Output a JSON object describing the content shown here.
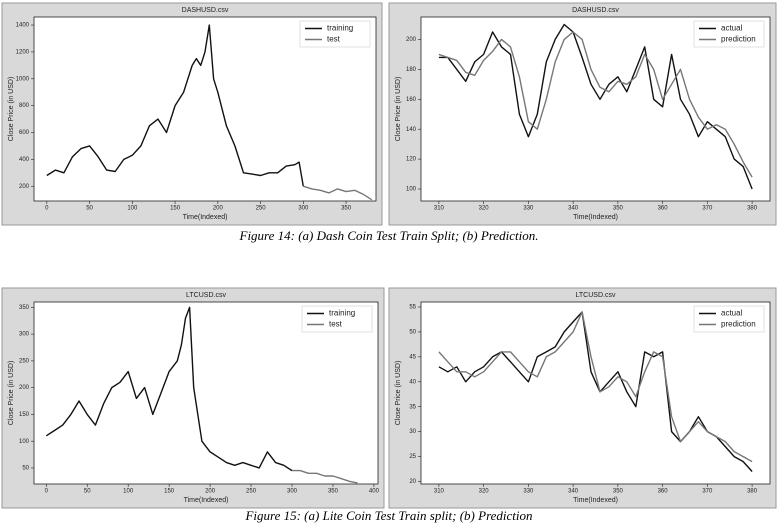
{
  "chart_data": [
    {
      "type": "line",
      "title": "DASHUSD.csv",
      "x_label": "Time(Indexed)",
      "y_label": "Close Price (in USD)",
      "xlim": [
        -15,
        385
      ],
      "ylim": [
        90,
        1460
      ],
      "xticks": [
        0,
        50,
        100,
        150,
        200,
        250,
        300,
        350
      ],
      "yticks": [
        200,
        400,
        600,
        800,
        1000,
        1200,
        1400
      ],
      "legend": "upper right",
      "series": [
        {
          "name": "training",
          "color": "#111111",
          "x": [
            0,
            10,
            20,
            30,
            40,
            50,
            60,
            70,
            80,
            90,
            100,
            110,
            120,
            130,
            140,
            150,
            160,
            170,
            175,
            180,
            185,
            190,
            195,
            200,
            210,
            220,
            230,
            240,
            250,
            260,
            270,
            280,
            290,
            295,
            300
          ],
          "values": [
            280,
            320,
            300,
            420,
            480,
            500,
            420,
            320,
            310,
            400,
            430,
            500,
            650,
            700,
            600,
            800,
            900,
            1100,
            1150,
            1100,
            1200,
            1400,
            1000,
            900,
            650,
            500,
            300,
            290,
            280,
            300,
            300,
            350,
            360,
            380,
            200
          ]
        },
        {
          "name": "test",
          "color": "#777777",
          "x": [
            300,
            310,
            320,
            330,
            340,
            350,
            360,
            370,
            380
          ],
          "values": [
            200,
            180,
            170,
            150,
            180,
            160,
            170,
            140,
            100
          ]
        }
      ]
    },
    {
      "type": "line",
      "title": "DASHUSD.csv",
      "x_label": "Time(Indexed)",
      "y_label": "Close Price (in USD)",
      "xlim": [
        306,
        384
      ],
      "ylim": [
        92,
        215
      ],
      "xticks": [
        310,
        320,
        330,
        340,
        350,
        360,
        370,
        380
      ],
      "yticks": [
        100,
        120,
        140,
        160,
        180,
        200
      ],
      "legend": "upper right",
      "x": [
        310,
        312,
        314,
        316,
        318,
        320,
        322,
        324,
        326,
        328,
        330,
        332,
        334,
        336,
        338,
        340,
        342,
        344,
        346,
        348,
        350,
        352,
        354,
        356,
        358,
        360,
        362,
        364,
        366,
        368,
        370,
        372,
        374,
        376,
        378,
        380
      ],
      "series": [
        {
          "name": "actual",
          "color": "#111111",
          "values": [
            188,
            188,
            180,
            172,
            185,
            190,
            205,
            195,
            190,
            150,
            135,
            150,
            185,
            200,
            210,
            205,
            188,
            170,
            160,
            170,
            175,
            165,
            180,
            195,
            160,
            155,
            190,
            160,
            150,
            135,
            145,
            140,
            135,
            120,
            115,
            100
          ]
        },
        {
          "name": "prediction",
          "color": "#777777",
          "values": [
            190,
            188,
            186,
            178,
            176,
            186,
            192,
            200,
            195,
            175,
            145,
            140,
            160,
            185,
            200,
            205,
            200,
            180,
            168,
            165,
            172,
            170,
            175,
            190,
            180,
            160,
            170,
            180,
            160,
            148,
            140,
            143,
            140,
            130,
            118,
            108
          ]
        }
      ]
    },
    {
      "type": "line",
      "title": "LTCUSD.csv",
      "x_label": "Time(Indexed)",
      "y_label": "Close Price (in USD)",
      "xlim": [
        -15,
        405
      ],
      "ylim": [
        20,
        360
      ],
      "xticks": [
        0,
        50,
        100,
        150,
        200,
        250,
        300,
        350,
        400
      ],
      "yticks": [
        50,
        100,
        150,
        200,
        250,
        300,
        350
      ],
      "legend": "upper right",
      "series": [
        {
          "name": "training",
          "color": "#111111",
          "x": [
            0,
            10,
            20,
            30,
            40,
            50,
            60,
            70,
            80,
            90,
            100,
            110,
            120,
            130,
            140,
            150,
            160,
            165,
            170,
            175,
            180,
            190,
            200,
            210,
            220,
            230,
            240,
            250,
            260,
            270,
            280,
            290,
            300
          ],
          "values": [
            110,
            120,
            130,
            150,
            175,
            150,
            130,
            170,
            200,
            210,
            230,
            180,
            200,
            150,
            190,
            230,
            250,
            280,
            330,
            350,
            200,
            100,
            80,
            70,
            60,
            55,
            60,
            55,
            50,
            80,
            60,
            55,
            45
          ]
        },
        {
          "name": "test",
          "color": "#777777",
          "x": [
            300,
            310,
            320,
            330,
            340,
            350,
            360,
            370,
            380
          ],
          "values": [
            45,
            45,
            40,
            40,
            35,
            35,
            30,
            25,
            22
          ]
        }
      ]
    },
    {
      "type": "line",
      "title": "LTCUSD.csv",
      "x_label": "Time(Indexed)",
      "y_label": "Close Price (in USD)",
      "xlim": [
        306,
        384
      ],
      "ylim": [
        19.5,
        56
      ],
      "xticks": [
        310,
        320,
        330,
        340,
        350,
        360,
        370,
        380
      ],
      "yticks": [
        20,
        25,
        30,
        35,
        40,
        45,
        50,
        55
      ],
      "legend": "upper right",
      "x": [
        310,
        312,
        314,
        316,
        318,
        320,
        322,
        324,
        326,
        328,
        330,
        332,
        334,
        336,
        338,
        340,
        342,
        344,
        346,
        348,
        350,
        352,
        354,
        356,
        358,
        360,
        362,
        364,
        366,
        368,
        370,
        372,
        374,
        376,
        378,
        380
      ],
      "series": [
        {
          "name": "actual",
          "color": "#111111",
          "values": [
            43,
            42,
            43,
            40,
            42,
            43,
            45,
            46,
            44,
            42,
            40,
            45,
            46,
            47,
            50,
            52,
            54,
            42,
            38,
            40,
            42,
            38,
            35,
            46,
            45,
            46,
            30,
            28,
            30,
            33,
            30,
            29,
            27,
            25,
            24,
            22
          ]
        },
        {
          "name": "prediction",
          "color": "#777777",
          "values": [
            46,
            44,
            42,
            42,
            41,
            42,
            44,
            46,
            46,
            44,
            42,
            41,
            45,
            46,
            48,
            50,
            54,
            45,
            38,
            39,
            41,
            40,
            37,
            42,
            46,
            45,
            33,
            28,
            30,
            32,
            30,
            29,
            28,
            26,
            25,
            24
          ]
        }
      ]
    }
  ],
  "captions": [
    "Figure 14: (a) Dash Coin Test Train Split; (b) Prediction.",
    "Figure 15: (a) Lite Coin Test Train split; (b) Prediction"
  ]
}
